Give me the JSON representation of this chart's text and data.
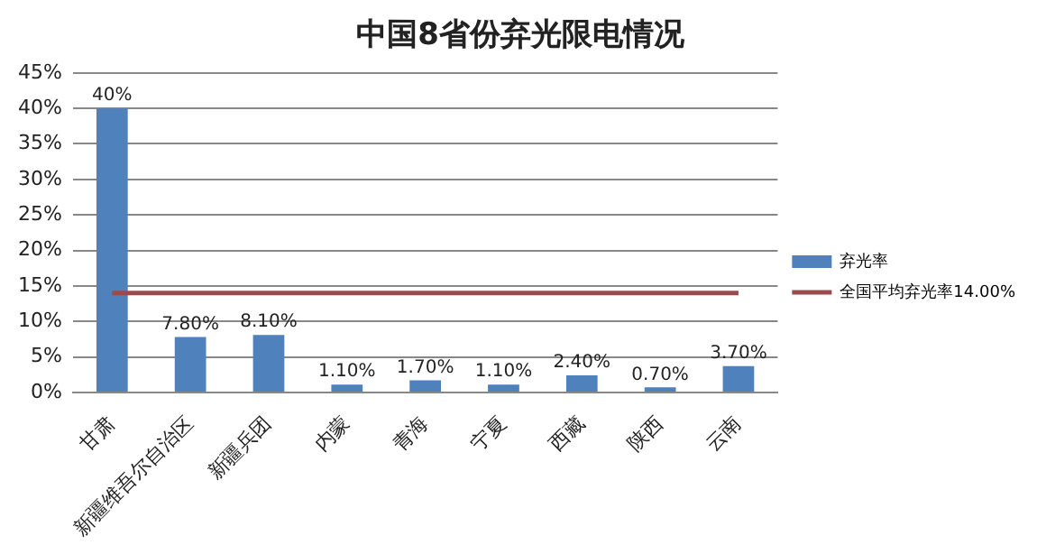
{
  "chart_data": {
    "type": "bar",
    "title": "中国8省份弃光限电情况",
    "categories": [
      "甘肃",
      "新疆维吾尔自治区",
      "新疆兵团",
      "内蒙",
      "青海",
      "宁夏",
      "西藏",
      "陕西",
      "云南"
    ],
    "series": [
      {
        "name": "弃光率",
        "color": "#4f81bd",
        "values": [
          40,
          7.8,
          8.1,
          1.1,
          1.7,
          1.1,
          2.4,
          0.7,
          3.7
        ],
        "value_labels": [
          "40%",
          "7.80%",
          "8.10%",
          "1.10%",
          "1.70%",
          "1.10%",
          "2.40%",
          "0.70%",
          "3.70%"
        ]
      },
      {
        "name": "全国平均弃光率14.00%",
        "type": "line",
        "color": "#9b4a4e",
        "values": [
          14,
          14,
          14,
          14,
          14,
          14,
          14,
          14,
          14
        ]
      }
    ],
    "ylim": [
      0,
      45
    ],
    "yticks": [
      {
        "value": 0,
        "label": "0%"
      },
      {
        "value": 5,
        "label": "5%"
      },
      {
        "value": 10,
        "label": "10%"
      },
      {
        "value": 15,
        "label": "15%"
      },
      {
        "value": 20,
        "label": "20%"
      },
      {
        "value": 25,
        "label": "25%"
      },
      {
        "value": 30,
        "label": "30%"
      },
      {
        "value": 35,
        "label": "35%"
      },
      {
        "value": 40,
        "label": "40%"
      },
      {
        "value": 45,
        "label": "45%"
      }
    ],
    "grid": "y",
    "legend": "right",
    "marker": "none"
  }
}
